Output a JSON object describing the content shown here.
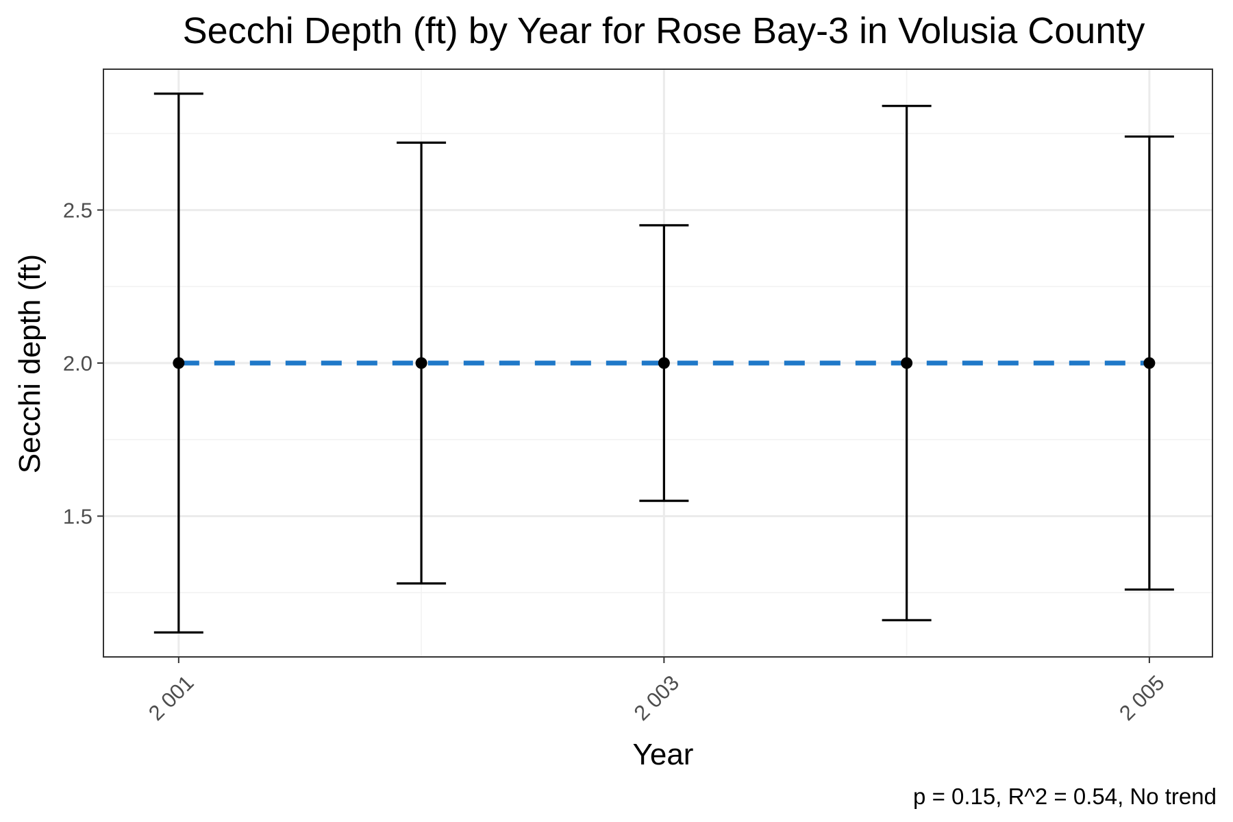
{
  "chart_data": {
    "type": "errorbar",
    "title": "Secchi Depth (ft) by Year for Rose Bay-3 in Volusia County",
    "xlabel": "Year",
    "ylabel": "Secchi depth (ft)",
    "caption": "p = 0.15, R^2 = 0.54, No trend",
    "x_ticks": [
      2001,
      2003,
      2005
    ],
    "x_tick_labels": [
      "2 001",
      "2 003",
      "2 005"
    ],
    "y_ticks": [
      1.5,
      2.0,
      2.5
    ],
    "y_tick_labels": [
      "1.5",
      "2.0",
      "2.5"
    ],
    "xlim": [
      2000.69,
      2005.26
    ],
    "ylim": [
      1.04,
      2.96
    ],
    "grid": true,
    "points": [
      {
        "x": 2001,
        "y": 2.0,
        "ymin": 1.12,
        "ymax": 2.88
      },
      {
        "x": 2002,
        "y": 2.0,
        "ymin": 1.28,
        "ymax": 2.72
      },
      {
        "x": 2003,
        "y": 2.0,
        "ymin": 1.55,
        "ymax": 2.45
      },
      {
        "x": 2004,
        "y": 2.0,
        "ymin": 1.16,
        "ymax": 2.84
      },
      {
        "x": 2005,
        "y": 2.0,
        "ymin": 1.26,
        "ymax": 2.74
      }
    ],
    "trend": {
      "x": [
        2001,
        2005
      ],
      "y": [
        2.0,
        2.0
      ],
      "style": "dashed"
    },
    "colors": {
      "trend": "#1f78c8",
      "points": "#000000"
    }
  }
}
